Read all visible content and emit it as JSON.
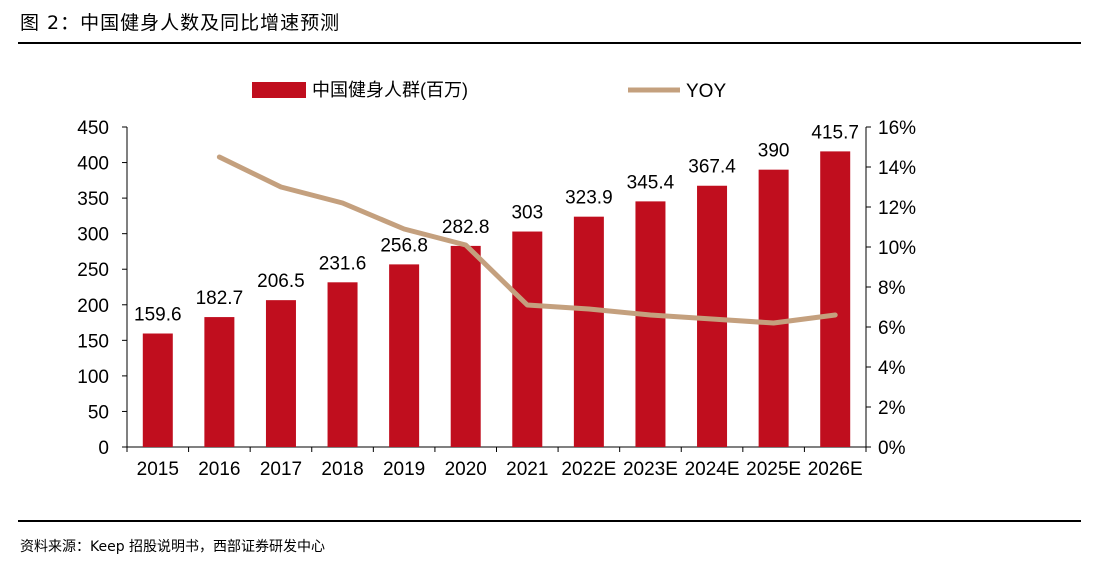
{
  "figure_title": "图 2：中国健身人数及同比增速预测",
  "source": "资料来源：Keep 招股说明书，西部证券研发中心",
  "colors": {
    "bar": "#c00e1e",
    "line": "#c4a07e",
    "text": "#000000"
  },
  "chart_data": {
    "type": "bar",
    "categories": [
      "2015",
      "2016",
      "2017",
      "2018",
      "2019",
      "2020",
      "2021",
      "2022E",
      "2023E",
      "2024E",
      "2025E",
      "2026E"
    ],
    "series": [
      {
        "name": "中国健身人群(百万)",
        "type": "bar",
        "axis": "left",
        "values": [
          159.6,
          182.7,
          206.5,
          231.6,
          256.8,
          282.8,
          303,
          323.9,
          345.4,
          367.4,
          390,
          415.7
        ],
        "labels": [
          "159.6",
          "182.7",
          "206.5",
          "231.6",
          "256.8",
          "282.8",
          "303",
          "323.9",
          "345.4",
          "367.4",
          "390",
          "415.7"
        ]
      },
      {
        "name": "YOY",
        "type": "line",
        "axis": "right",
        "values": [
          null,
          14.5,
          13.0,
          12.2,
          10.9,
          10.1,
          7.1,
          6.9,
          6.6,
          6.4,
          6.2,
          6.6
        ]
      }
    ],
    "y_left": {
      "min": 0,
      "max": 450,
      "ticks": [
        "0",
        "50",
        "100",
        "150",
        "200",
        "250",
        "300",
        "350",
        "400",
        "450"
      ]
    },
    "y_right": {
      "min": 0,
      "max": 16,
      "ticks": [
        "0%",
        "2%",
        "4%",
        "6%",
        "8%",
        "10%",
        "12%",
        "14%",
        "16%"
      ]
    },
    "legend_position": "top",
    "grid": false
  }
}
